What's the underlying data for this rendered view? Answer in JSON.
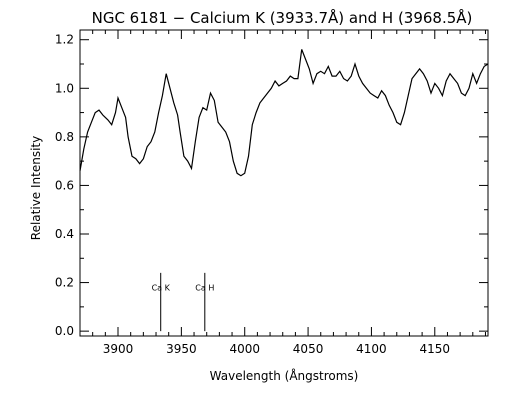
{
  "chart_data": {
    "type": "line",
    "title": "NGC 6181 − Calcium K (3933.7Å) and H (3968.5Å)",
    "xlabel": "Wavelength (Ångstroms)",
    "ylabel": "Relative Intensity",
    "xlim": [
      3870,
      4192
    ],
    "ylim": [
      -0.02,
      1.24
    ],
    "grid": false,
    "x_ticks": [
      3900,
      3950,
      4000,
      4050,
      4100,
      4150
    ],
    "x_tick_labels": [
      "3900",
      "3950",
      "4000",
      "4050",
      "4100",
      "4150"
    ],
    "y_ticks": [
      0.0,
      0.2,
      0.4,
      0.6,
      0.8,
      1.0,
      1.2
    ],
    "y_tick_labels": [
      "0.0",
      "0.2",
      "0.4",
      "0.6",
      "0.8",
      "1.0",
      "1.2"
    ],
    "series": [
      {
        "color": "#000000",
        "x": [
          3870,
          3873,
          3876,
          3879,
          3882,
          3885,
          3888,
          3890,
          3892,
          3895,
          3898,
          3900,
          3903,
          3906,
          3908,
          3911,
          3914,
          3917,
          3920,
          3923,
          3926,
          3929,
          3932,
          3935,
          3938,
          3941,
          3944,
          3947,
          3949,
          3952,
          3955,
          3958,
          3961,
          3964,
          3967,
          3970,
          3973,
          3976,
          3979,
          3982,
          3985,
          3988,
          3991,
          3994,
          3997,
          4000,
          4003,
          4006,
          4009,
          4012,
          4015,
          4018,
          4021,
          4024,
          4027,
          4030,
          4033,
          4036,
          4039,
          4042,
          4045,
          4048,
          4051,
          4054,
          4057,
          4060,
          4063,
          4066,
          4069,
          4072,
          4075,
          4078,
          4081,
          4084,
          4087,
          4090,
          4093,
          4096,
          4099,
          4102,
          4105,
          4108,
          4111,
          4114,
          4117,
          4120,
          4123,
          4126,
          4129,
          4132,
          4135,
          4138,
          4141,
          4144,
          4147,
          4150,
          4153,
          4156,
          4159,
          4162,
          4165,
          4168,
          4171,
          4174,
          4177,
          4180,
          4183,
          4186,
          4189,
          4192
        ],
        "values": [
          0.66,
          0.75,
          0.82,
          0.86,
          0.9,
          0.91,
          0.89,
          0.88,
          0.87,
          0.85,
          0.9,
          0.96,
          0.92,
          0.88,
          0.8,
          0.72,
          0.71,
          0.69,
          0.71,
          0.76,
          0.78,
          0.82,
          0.9,
          0.97,
          1.06,
          1.0,
          0.94,
          0.89,
          0.82,
          0.72,
          0.7,
          0.67,
          0.78,
          0.88,
          0.92,
          0.91,
          0.98,
          0.95,
          0.86,
          0.84,
          0.82,
          0.78,
          0.7,
          0.65,
          0.64,
          0.65,
          0.72,
          0.85,
          0.9,
          0.94,
          0.96,
          0.98,
          1.0,
          1.03,
          1.01,
          1.02,
          1.03,
          1.05,
          1.04,
          1.04,
          1.16,
          1.12,
          1.08,
          1.02,
          1.06,
          1.07,
          1.06,
          1.09,
          1.05,
          1.05,
          1.07,
          1.04,
          1.03,
          1.05,
          1.1,
          1.05,
          1.02,
          1.0,
          0.98,
          0.97,
          0.96,
          0.99,
          0.97,
          0.93,
          0.9,
          0.86,
          0.85,
          0.9,
          0.97,
          1.04,
          1.06,
          1.08,
          1.06,
          1.03,
          0.98,
          1.02,
          1.0,
          0.97,
          1.03,
          1.06,
          1.04,
          1.02,
          0.98,
          0.97,
          1.0,
          1.06,
          1.02,
          1.06,
          1.09,
          1.1
        ]
      }
    ],
    "annotations": [
      {
        "label": "Ca K",
        "x": 3933.7,
        "y_from": 0.0,
        "y_to": 0.24,
        "label_y": 0.18
      },
      {
        "label": "Ca H",
        "x": 3968.5,
        "y_from": 0.0,
        "y_to": 0.24,
        "label_y": 0.18
      }
    ]
  }
}
